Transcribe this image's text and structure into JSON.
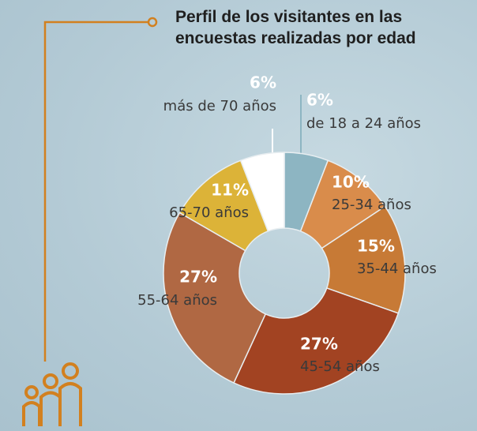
{
  "chart_data": {
    "type": "donut",
    "title": "Perfil de los visitantes en las encuestas realizadas por edad",
    "categories": [
      "de 18 a 24 años",
      "25-34 años",
      "35-44 años",
      "45-54 años",
      "55-64 años",
      "65-70 años",
      "más de 70 años"
    ],
    "values": [
      6,
      10,
      15,
      27,
      27,
      11,
      6
    ],
    "value_labels": [
      "6%",
      "10%",
      "15%",
      "27%",
      "27%",
      "11%",
      "6%"
    ],
    "colors": [
      "#8db5c2",
      "#d98c4b",
      "#c77a36",
      "#a24322",
      "#b06843",
      "#dcb338",
      "#ffffff"
    ]
  }
}
